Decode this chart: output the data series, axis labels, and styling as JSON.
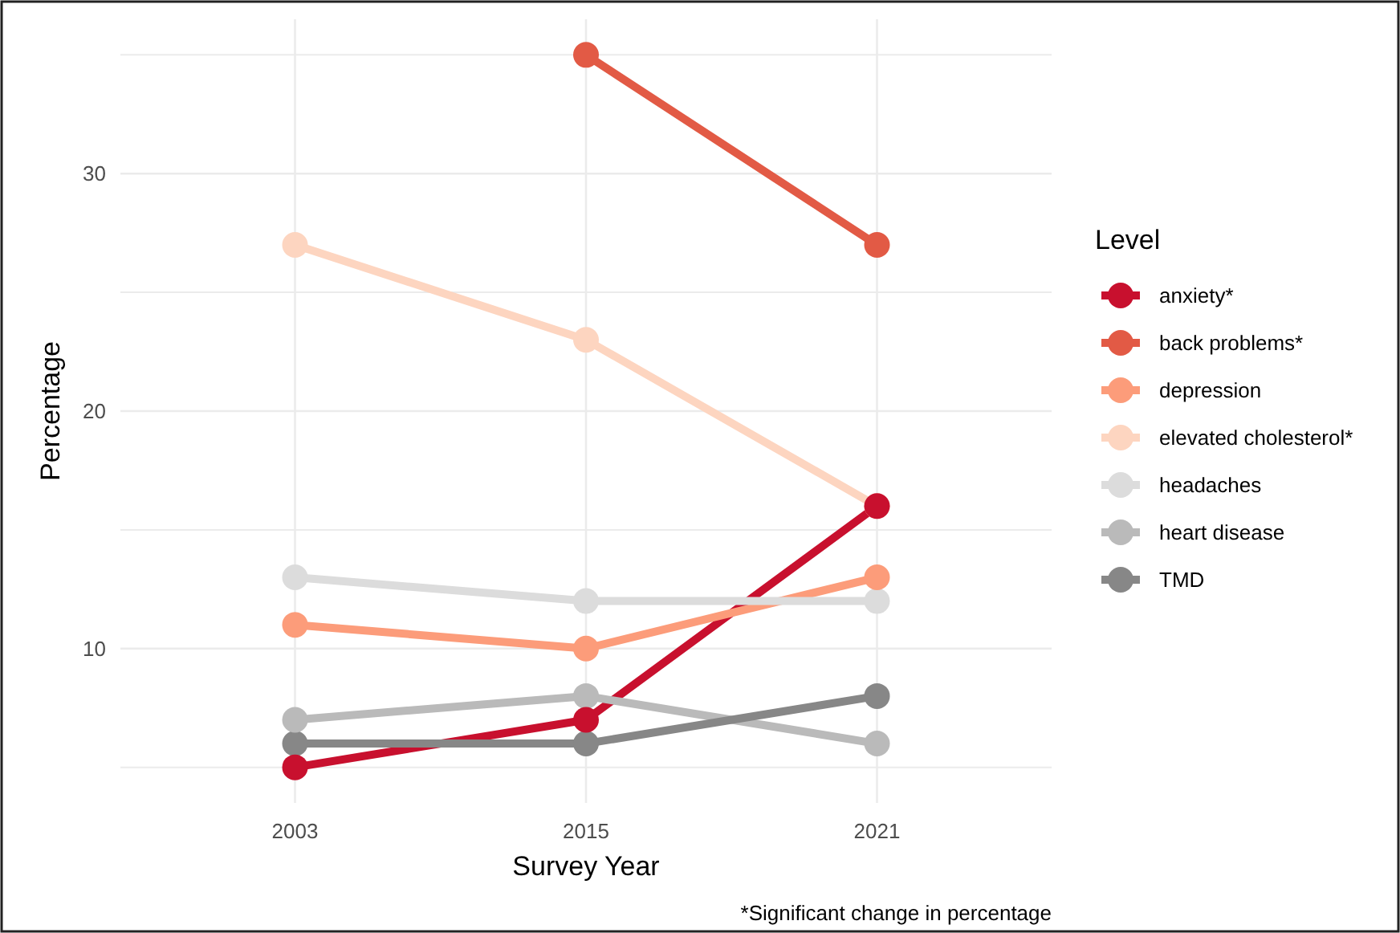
{
  "chart_data": {
    "type": "line",
    "xlabel": "Survey Year",
    "ylabel": "Percentage",
    "legend_title": "Level",
    "categories": [
      "2003",
      "2015",
      "2021"
    ],
    "series": [
      {
        "name": "anxiety*",
        "color": "#c8102e",
        "values": [
          5,
          7,
          16
        ]
      },
      {
        "name": "back problems*",
        "color": "#e25a45",
        "values": [
          null,
          35,
          27
        ]
      },
      {
        "name": "depression",
        "color": "#fc9c7a",
        "values": [
          11,
          10,
          13
        ]
      },
      {
        "name": "elevated cholesterol*",
        "color": "#fdd5c0",
        "values": [
          27,
          23,
          16
        ]
      },
      {
        "name": "headaches",
        "color": "#dcdcdc",
        "values": [
          13,
          12,
          12
        ]
      },
      {
        "name": "heart disease",
        "color": "#bababa",
        "values": [
          7,
          8,
          6
        ]
      },
      {
        "name": "TMD",
        "color": "#878787",
        "values": [
          6,
          6,
          8
        ]
      }
    ],
    "ylim": [
      3.5,
      36.5
    ],
    "yticks": [
      {
        "value": 5,
        "label": null
      },
      10,
      {
        "value": 15,
        "label": null
      },
      20,
      {
        "value": 25,
        "label": null
      },
      30,
      {
        "value": 35,
        "label": null
      }
    ],
    "grid": true,
    "legend": "right",
    "marker": "circle",
    "line_style": "solid",
    "annotations": [
      "*Significant change in percentage"
    ]
  }
}
